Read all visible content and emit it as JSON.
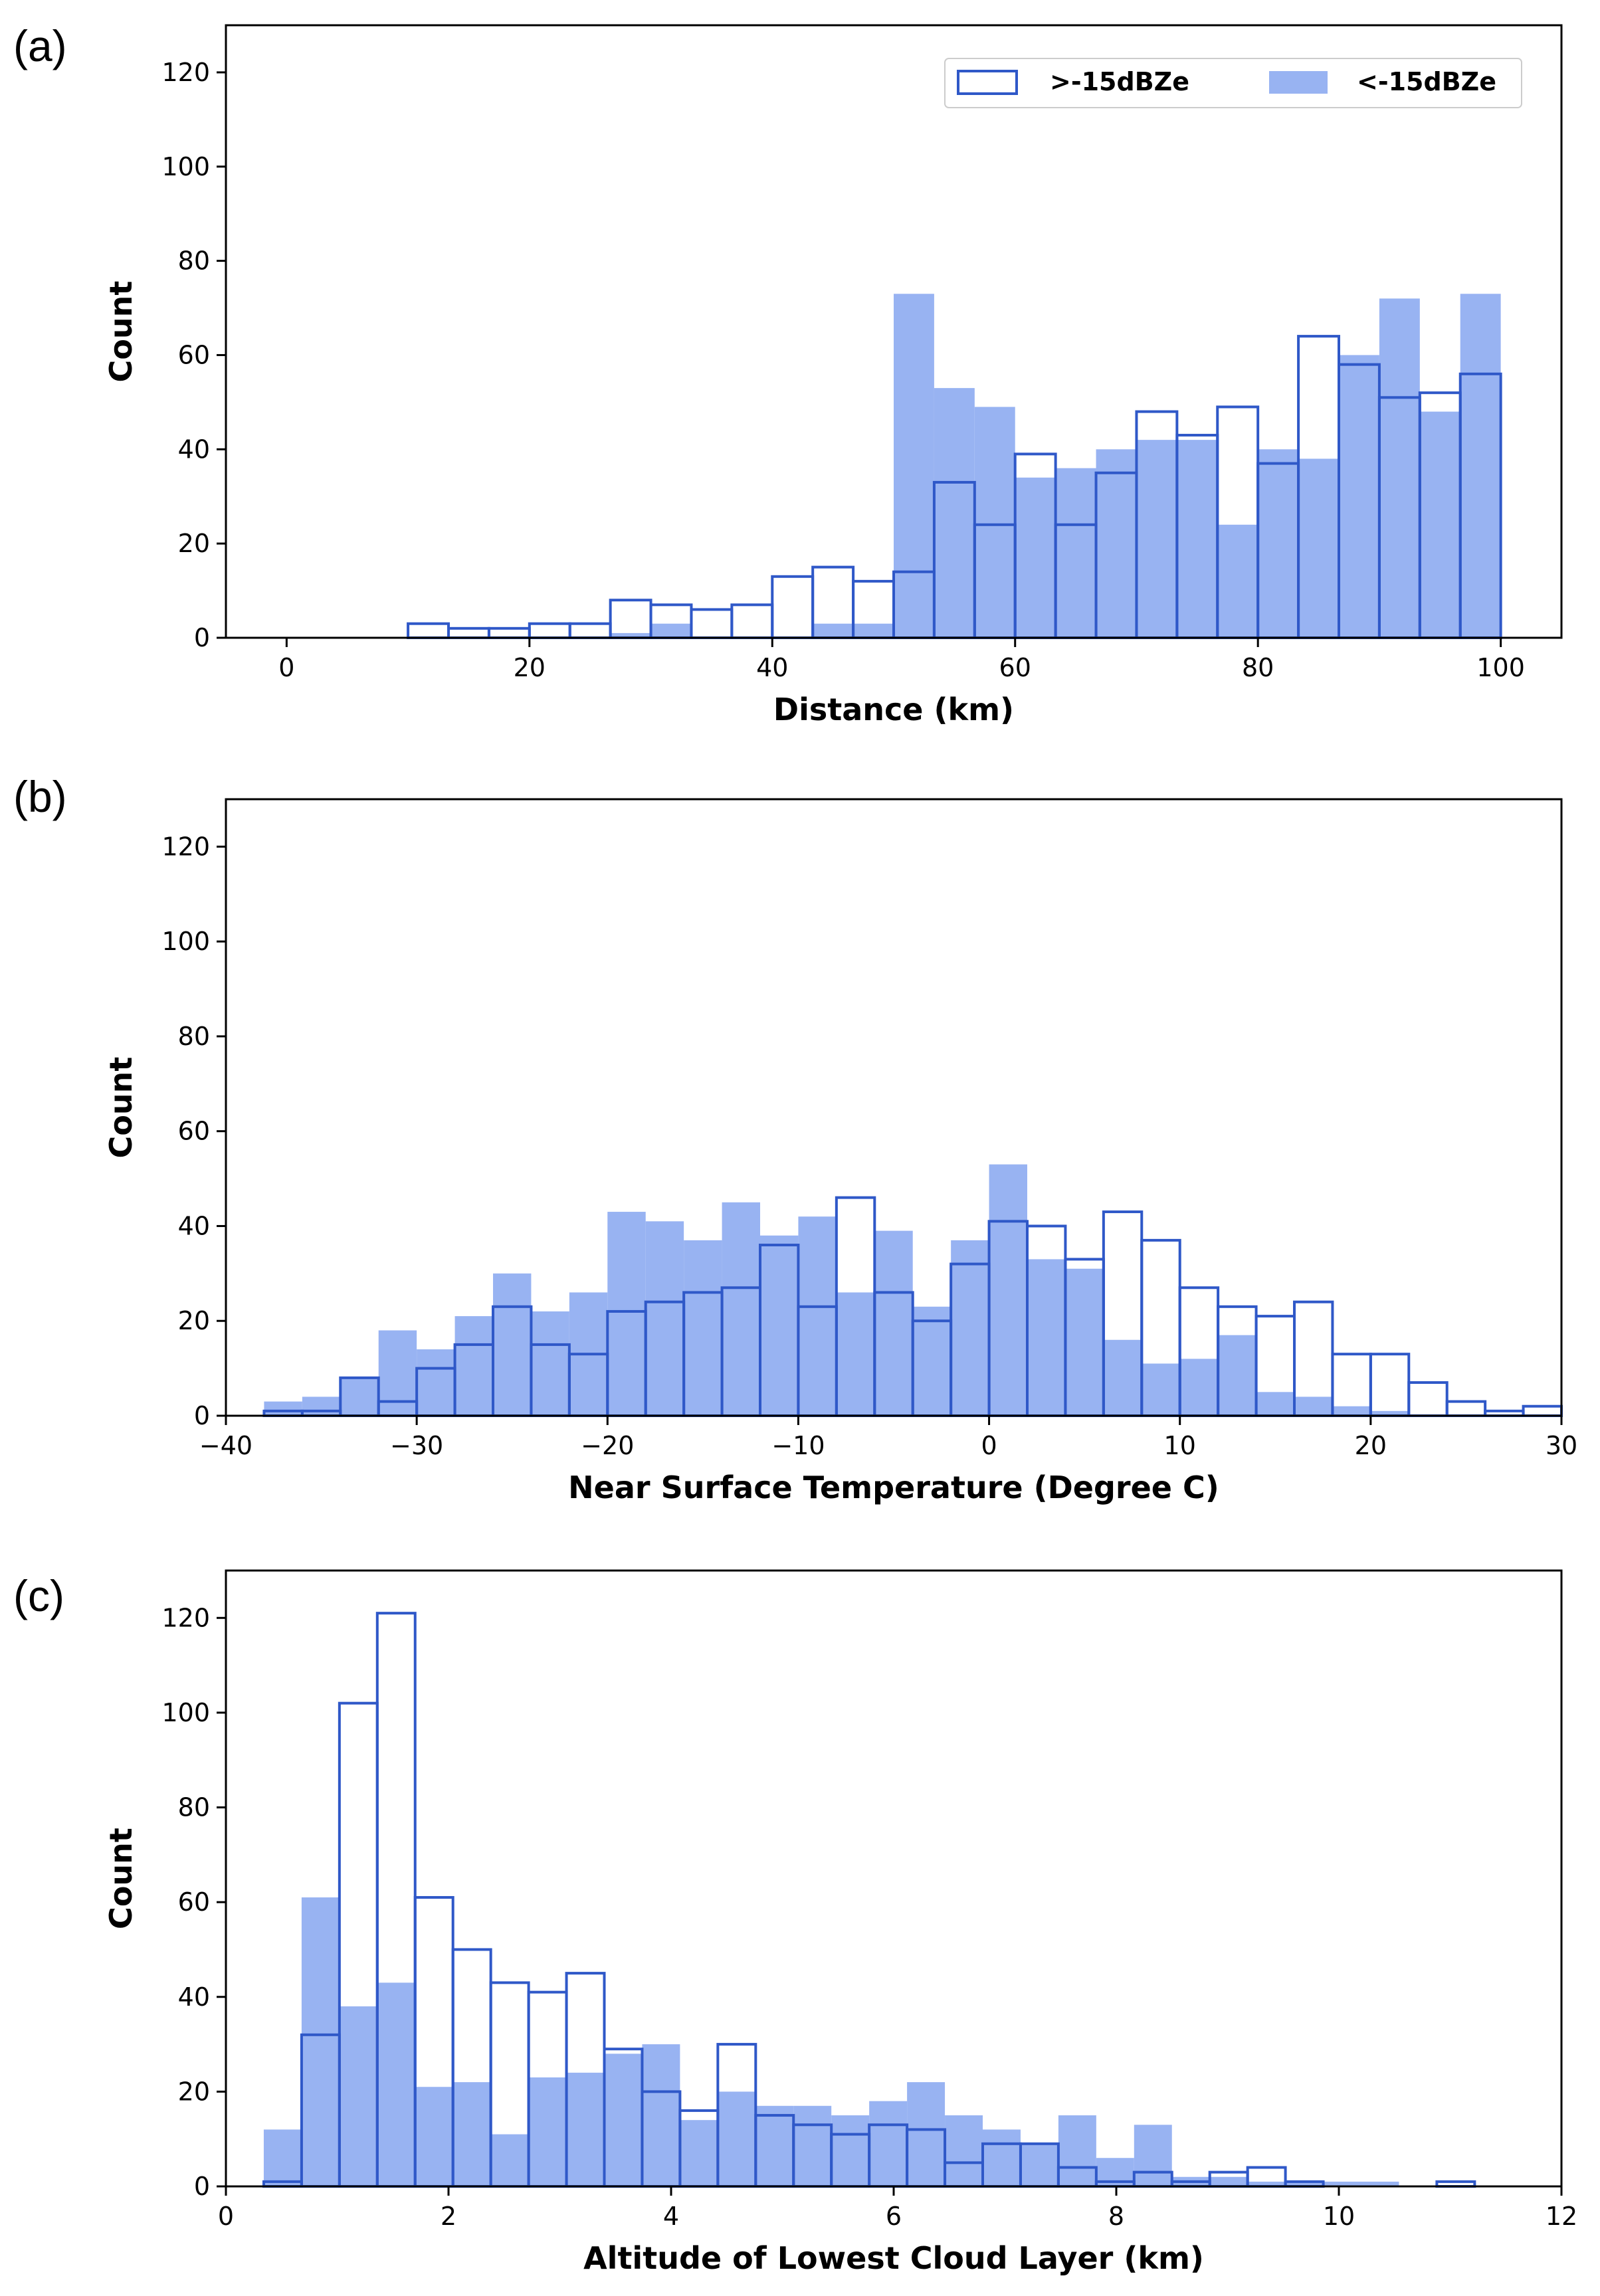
{
  "colors": {
    "outline": "#2f58c8",
    "fill": "#98b3f2",
    "axis": "#000000",
    "legend_border": "#cccccc"
  },
  "legend": {
    "items": [
      "&gt;-15dBZe",
      "&lt;-15dBZe"
    ]
  },
  "chart_data": [
    {
      "type": "bar",
      "panel": "(a)",
      "xlabel": "Distance (km)",
      "ylabel": "Count",
      "xlim": [
        -5,
        105
      ],
      "ylim": [
        0,
        130
      ],
      "xticks": [
        "0",
        "20",
        "40",
        "60",
        "80",
        "100"
      ],
      "yticks": [
        "0",
        "20",
        "40",
        "60",
        "80",
        "100",
        "120"
      ],
      "bin_start": 0,
      "bin_width": 3.33333,
      "legend_position": "top-right",
      "series": [
        {
          "name": "&lt;-15dBZe",
          "style": "filled",
          "values": [
            0,
            0,
            0,
            0,
            0,
            0,
            0,
            0,
            1,
            3,
            0,
            0,
            0,
            3,
            3,
            73,
            53,
            49,
            34,
            36,
            40,
            42,
            42,
            24,
            40,
            38,
            60,
            72,
            48,
            73
          ]
        },
        {
          "name": "&gt;-15dBZe",
          "style": "outline",
          "values": [
            0,
            0,
            0,
            3,
            2,
            2,
            3,
            3,
            8,
            7,
            6,
            7,
            13,
            15,
            12,
            14,
            33,
            24,
            39,
            24,
            35,
            48,
            43,
            49,
            37,
            64,
            58,
            51,
            52,
            56
          ]
        }
      ]
    },
    {
      "type": "bar",
      "panel": "(b)",
      "xlabel": "Near Surface Temperature (Degree C)",
      "ylabel": "Count",
      "xlim": [
        -40,
        30
      ],
      "ylim": [
        0,
        130
      ],
      "xticks": [
        "−40",
        "−30",
        "−20",
        "−10",
        "0",
        "10",
        "20",
        "30"
      ],
      "yticks": [
        "0",
        "20",
        "40",
        "60",
        "80",
        "100",
        "120"
      ],
      "bin_start": -38,
      "bin_width": 2,
      "series": [
        {
          "name": "&lt;-15dBZe",
          "style": "filled",
          "values": [
            3,
            4,
            8,
            18,
            14,
            21,
            30,
            22,
            26,
            43,
            41,
            37,
            45,
            38,
            42,
            26,
            39,
            23,
            37,
            53,
            33,
            31,
            16,
            11,
            12,
            17,
            5,
            4,
            2,
            1,
            0,
            0,
            0,
            0,
            0
          ]
        },
        {
          "name": "&gt;-15dBZe",
          "style": "outline",
          "values": [
            1,
            1,
            8,
            3,
            10,
            15,
            23,
            15,
            13,
            22,
            24,
            26,
            27,
            36,
            23,
            46,
            26,
            20,
            32,
            41,
            40,
            33,
            43,
            37,
            27,
            23,
            21,
            24,
            13,
            13,
            7,
            3,
            1,
            2
          ]
        }
      ]
    },
    {
      "type": "bar",
      "panel": "(c)",
      "xlabel": "Altitude of Lowest Cloud Layer (km)",
      "ylabel": "Count",
      "xlim": [
        0,
        12
      ],
      "ylim": [
        0,
        130
      ],
      "xticks": [
        "0",
        "2",
        "4",
        "6",
        "8",
        "10",
        "12"
      ],
      "yticks": [
        "0",
        "20",
        "40",
        "60",
        "80",
        "100",
        "120"
      ],
      "bin_start": 0.34,
      "bin_width": 0.34,
      "series": [
        {
          "name": "&lt;-15dBZe",
          "style": "filled",
          "values": [
            12,
            61,
            38,
            43,
            21,
            22,
            11,
            23,
            24,
            28,
            30,
            14,
            20,
            17,
            17,
            15,
            18,
            22,
            15,
            12,
            9,
            15,
            6,
            13,
            2,
            2,
            1,
            1,
            1,
            1,
            0,
            0,
            0
          ]
        },
        {
          "name": "&gt;-15dBZe",
          "style": "outline",
          "values": [
            1,
            32,
            102,
            121,
            61,
            50,
            43,
            41,
            45,
            29,
            20,
            16,
            30,
            15,
            13,
            11,
            13,
            12,
            5,
            9,
            9,
            4,
            1,
            3,
            1,
            3,
            4,
            1,
            0,
            0,
            0,
            1,
            0
          ]
        }
      ]
    }
  ]
}
